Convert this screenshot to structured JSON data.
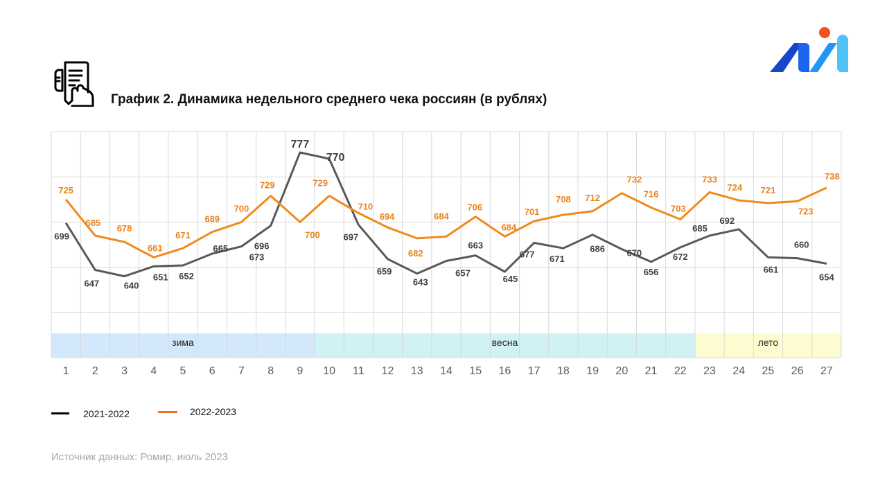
{
  "header": {
    "title": "График 2. Динамика недельного среднего чека россиян (в рублях)",
    "icon": "receipt-in-hand-icon",
    "logo": "romir-logo-icon"
  },
  "chart_data": {
    "type": "line",
    "title": "График 2. Динамика недельного среднего чека россиян (в рублях)",
    "xlabel": "",
    "ylabel": "",
    "x": [
      1,
      2,
      3,
      4,
      5,
      6,
      7,
      8,
      9,
      10,
      11,
      12,
      13,
      14,
      15,
      16,
      17,
      18,
      19,
      20,
      21,
      22,
      23,
      24,
      25,
      26,
      27
    ],
    "ylim": [
      550,
      800
    ],
    "ygrid_step": 50,
    "grid": true,
    "series": [
      {
        "name": "2021-2022",
        "color": "#595959",
        "values": [
          699,
          647,
          640,
          651,
          652,
          665,
          673,
          696,
          777,
          770,
          697,
          659,
          643,
          657,
          663,
          645,
          677,
          671,
          686,
          670,
          656,
          672,
          685,
          692,
          661,
          660,
          654
        ]
      },
      {
        "name": "2022-2023",
        "color": "#f08a1c",
        "values": [
          725,
          685,
          678,
          661,
          671,
          689,
          700,
          729,
          700,
          729,
          710,
          694,
          682,
          684,
          706,
          684,
          701,
          708,
          712,
          732,
          716,
          703,
          733,
          724,
          721,
          723,
          738
        ]
      }
    ],
    "seasons": [
      {
        "label": "зима",
        "from": 1,
        "to": 9,
        "color": "#d3e8fa"
      },
      {
        "label": "весна",
        "from": 10,
        "to": 22,
        "color": "#d0f2f5"
      },
      {
        "label": "лето",
        "from": 23,
        "to": 27,
        "color": "#fdfcd0"
      }
    ],
    "legend": [
      {
        "label": "2021-2022",
        "color": "#000000"
      },
      {
        "label": "2022-2023",
        "color": "#e8742a"
      }
    ],
    "legend_position": "bottom-left"
  },
  "footer": {
    "source": "Источник данных: Ромир, июль 2023"
  }
}
